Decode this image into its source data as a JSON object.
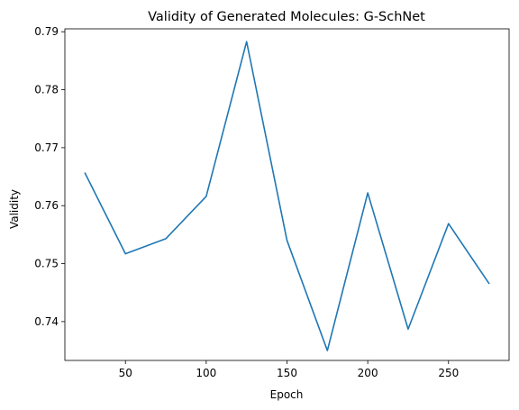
{
  "chart_data": {
    "type": "line",
    "title": "Validity of Generated Molecules: G-SchNet",
    "xlabel": "Epoch",
    "ylabel": "Validity",
    "xlim": [
      12.5,
      287.5
    ],
    "ylim": [
      0.7333,
      0.7905
    ],
    "x_ticks": [
      50,
      100,
      150,
      200,
      250
    ],
    "y_ticks": [
      0.74,
      0.75,
      0.76,
      0.77,
      0.78,
      0.79
    ],
    "x_tick_labels": [
      "50",
      "100",
      "150",
      "200",
      "250"
    ],
    "y_tick_labels": [
      "0.74",
      "0.75",
      "0.76",
      "0.77",
      "0.78",
      "0.79"
    ],
    "grid": false,
    "color": "#1f77b4",
    "series": [
      {
        "x": [
          25,
          50,
          75,
          100,
          125,
          150,
          175,
          200,
          225,
          250,
          275
        ],
        "values": [
          0.7656,
          0.7517,
          0.7543,
          0.7616,
          0.7883,
          0.754,
          0.735,
          0.7622,
          0.7387,
          0.7569,
          0.7466
        ]
      }
    ]
  }
}
